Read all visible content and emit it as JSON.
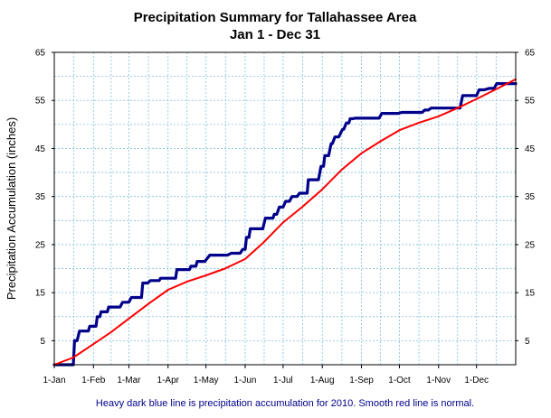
{
  "chart_data": {
    "type": "line",
    "title": "Precipitation Summary for Tallahassee Area",
    "subtitle": "Jan 1 - Dec 31",
    "ylabel": "Precipitation Accumulation (inches)",
    "caption": "Heavy dark blue line is precipitation accumulation for 2010. Smooth red line is normal.",
    "x_axis": {
      "type": "day_of_year",
      "range": [
        0,
        365
      ],
      "tick_labels": [
        "1-Jan",
        "1-Feb",
        "1-Mar",
        "1-Apr",
        "1-May",
        "1-Jun",
        "1-Jul",
        "1-Aug",
        "1-Sep",
        "1-Oct",
        "1-Nov",
        "1-Dec"
      ],
      "tick_days": [
        0,
        31,
        59,
        90,
        120,
        151,
        181,
        212,
        243,
        273,
        304,
        334
      ]
    },
    "y_axis": {
      "range": [
        0,
        65
      ],
      "ticks": [
        5,
        15,
        25,
        35,
        45,
        55,
        65
      ],
      "tick_labels": [
        "5",
        "15",
        "25",
        "35",
        "45",
        "55",
        "65"
      ],
      "minor_gridlines": [
        0,
        5,
        10,
        15,
        20,
        25,
        30,
        35,
        40,
        45,
        50,
        55,
        60,
        65
      ],
      "mirrored_right": true
    },
    "grid": true,
    "series": [
      {
        "color": "#00008b",
        "style": "heavy_step",
        "points": [
          [
            0,
            0
          ],
          [
            15,
            0
          ],
          [
            16,
            5
          ],
          [
            18,
            5
          ],
          [
            20,
            7
          ],
          [
            27,
            7
          ],
          [
            28,
            8
          ],
          [
            33,
            8
          ],
          [
            34,
            10
          ],
          [
            36,
            10
          ],
          [
            37,
            11
          ],
          [
            42,
            11
          ],
          [
            43,
            12
          ],
          [
            52,
            12
          ],
          [
            54,
            13
          ],
          [
            59,
            13
          ],
          [
            61,
            14
          ],
          [
            69,
            14
          ],
          [
            70,
            17
          ],
          [
            74,
            17
          ],
          [
            76,
            17.5
          ],
          [
            83,
            17.5
          ],
          [
            84,
            18
          ],
          [
            96,
            18
          ],
          [
            97,
            19.8
          ],
          [
            107,
            19.8
          ],
          [
            108,
            20.5
          ],
          [
            112,
            20.5
          ],
          [
            113,
            21.5
          ],
          [
            119,
            21.5
          ],
          [
            123,
            22.8
          ],
          [
            137,
            22.8
          ],
          [
            140,
            23.2
          ],
          [
            147,
            23.2
          ],
          [
            149,
            24
          ],
          [
            151,
            24
          ],
          [
            152,
            26.5
          ],
          [
            154,
            26.5
          ],
          [
            155,
            28.3
          ],
          [
            165,
            28.3
          ],
          [
            167,
            30.5
          ],
          [
            173,
            30.5
          ],
          [
            174,
            31.3
          ],
          [
            176,
            31.3
          ],
          [
            178,
            32.8
          ],
          [
            181,
            32.8
          ],
          [
            183,
            34
          ],
          [
            186,
            34
          ],
          [
            188,
            35
          ],
          [
            192,
            35
          ],
          [
            194,
            35.7
          ],
          [
            200,
            35.7
          ],
          [
            201,
            38.5
          ],
          [
            209,
            38.5
          ],
          [
            211,
            41.3
          ],
          [
            213,
            41.3
          ],
          [
            214,
            43.5
          ],
          [
            217,
            43.5
          ],
          [
            219,
            46
          ],
          [
            220,
            46
          ],
          [
            222,
            47.4
          ],
          [
            225,
            47.4
          ],
          [
            228,
            49
          ],
          [
            229,
            49
          ],
          [
            231,
            50.3
          ],
          [
            233,
            50.3
          ],
          [
            234,
            51.2
          ],
          [
            236,
            51.2
          ],
          [
            238,
            51.3
          ],
          [
            257,
            51.3
          ],
          [
            259,
            52.3
          ],
          [
            272,
            52.3
          ],
          [
            275,
            52.5
          ],
          [
            291,
            52.5
          ],
          [
            293,
            53
          ],
          [
            296,
            53
          ],
          [
            298,
            53.4
          ],
          [
            321,
            53.4
          ],
          [
            323,
            56
          ],
          [
            334,
            56
          ],
          [
            336,
            57.2
          ],
          [
            340,
            57.2
          ],
          [
            344,
            57.5
          ],
          [
            348,
            57.5
          ],
          [
            350,
            58.5
          ],
          [
            365,
            58.5
          ]
        ]
      },
      {
        "color": "#ff0000",
        "style": "smooth",
        "points": [
          [
            0,
            0
          ],
          [
            15,
            1.5
          ],
          [
            31,
            4.3
          ],
          [
            45,
            6.8
          ],
          [
            59,
            9.6
          ],
          [
            75,
            12.8
          ],
          [
            90,
            15.6
          ],
          [
            105,
            17.3
          ],
          [
            120,
            18.6
          ],
          [
            135,
            20
          ],
          [
            151,
            22
          ],
          [
            165,
            25.3
          ],
          [
            181,
            29.6
          ],
          [
            196,
            32.8
          ],
          [
            212,
            36.5
          ],
          [
            227,
            40.5
          ],
          [
            243,
            44
          ],
          [
            258,
            46.5
          ],
          [
            273,
            48.8
          ],
          [
            288,
            50.3
          ],
          [
            304,
            51.7
          ],
          [
            319,
            53.4
          ],
          [
            334,
            55.3
          ],
          [
            350,
            57.4
          ],
          [
            365,
            59.4
          ]
        ]
      }
    ]
  }
}
